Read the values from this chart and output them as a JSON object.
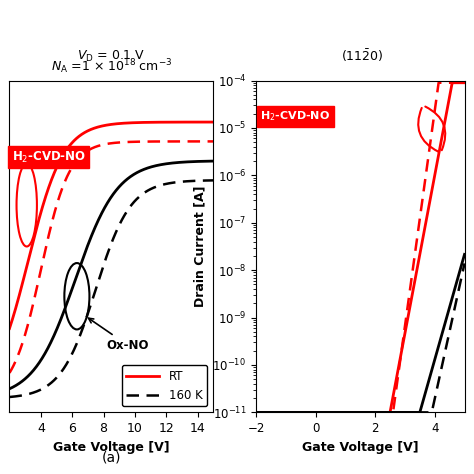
{
  "title_left_line1": "$V_{\\mathrm{D}}$ = 0.1 V",
  "title_left_line2": "$N_{\\mathrm{A}}$ =1 × 10$^{18}$ cm$^{-3}$",
  "title_right": "(11$\\bar{2}$0)",
  "xlabel": "Gate Voltage [V]",
  "ylabel_right": "Drain Current [A]",
  "label_a": "(a)",
  "left_xlim": [
    2,
    15
  ],
  "left_xticks": [
    4,
    6,
    8,
    10,
    12,
    14
  ],
  "right_xlim": [
    -2,
    5
  ],
  "right_xticks": [
    -2,
    0,
    2,
    4
  ],
  "h2cvd_label": "H$_2$-CVD-NO",
  "oxno_label": "Ox-NO",
  "rt_label": "RT",
  "k160_label": "160 K",
  "red_color": "#FF0000",
  "black_color": "#000000",
  "bg_color": "#FFFFFF"
}
